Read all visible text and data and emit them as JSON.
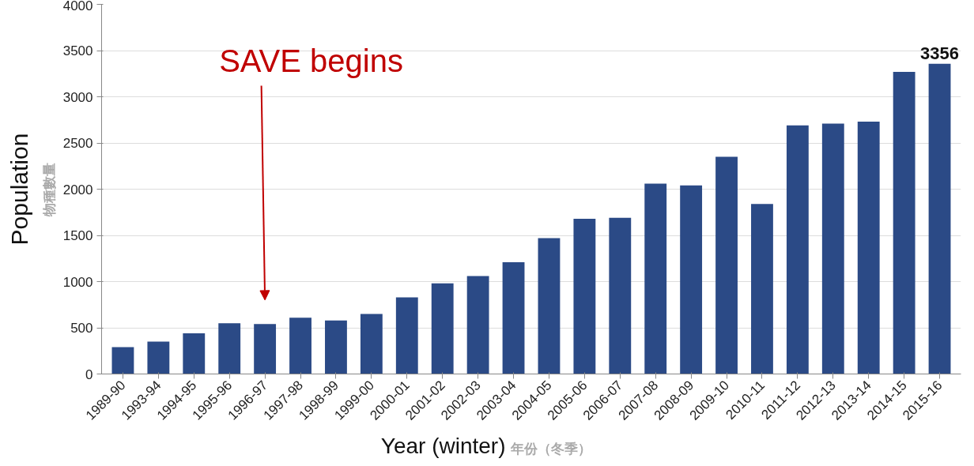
{
  "chart_data": {
    "type": "bar",
    "xlabel": "Year (winter)",
    "ylabel": "Population",
    "categories": [
      "1989-90",
      "1993-94",
      "1994-95",
      "1995-96",
      "1996-97",
      "1997-98",
      "1998-99",
      "1999-00",
      "2000-01",
      "2001-02",
      "2002-03",
      "2003-04",
      "2004-05",
      "2005-06",
      "2006-07",
      "2007-08",
      "2008-09",
      "2009-10",
      "2010-11",
      "2011-12",
      "2012-13",
      "2013-14",
      "2014-15",
      "2015-16"
    ],
    "values": [
      290,
      350,
      440,
      550,
      540,
      610,
      580,
      650,
      830,
      980,
      1060,
      1210,
      1470,
      1680,
      1690,
      2060,
      2040,
      2350,
      1840,
      2690,
      2710,
      2730,
      3270,
      3356
    ],
    "value_labels": [
      null,
      null,
      null,
      null,
      null,
      null,
      null,
      null,
      null,
      null,
      null,
      null,
      null,
      null,
      null,
      null,
      null,
      null,
      null,
      null,
      null,
      null,
      null,
      "3356"
    ],
    "color": "#2b4a86",
    "ylim": [
      0,
      4000
    ],
    "yticks": [
      0,
      500,
      1000,
      1500,
      2000,
      2500,
      3000,
      3500,
      4000
    ],
    "grid": "y",
    "annotations": [
      "SAVE begins",
      "物種數量",
      "年份（冬季）"
    ]
  }
}
